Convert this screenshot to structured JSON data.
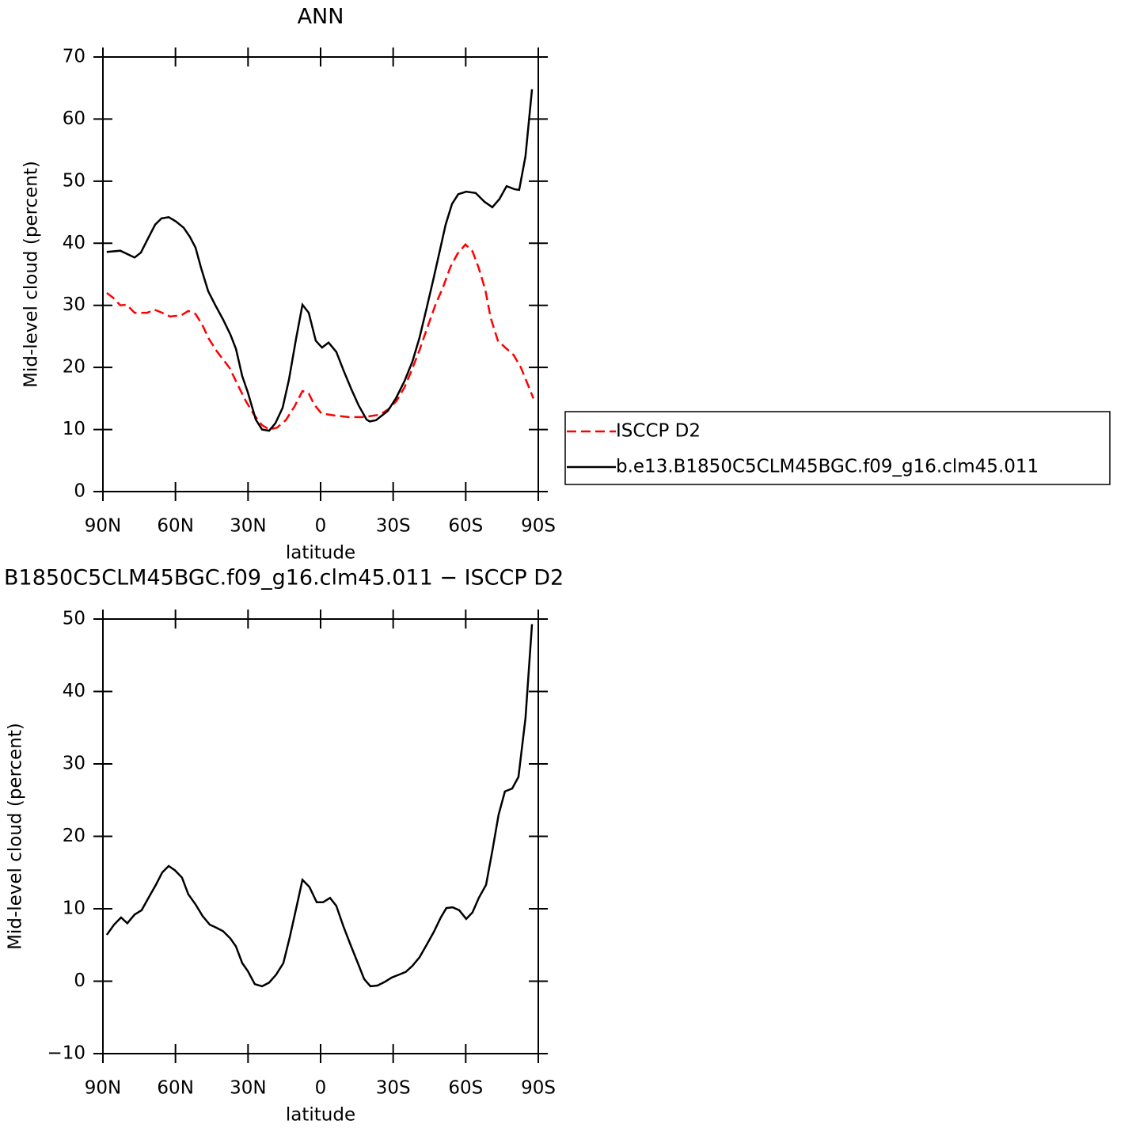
{
  "chart_data": [
    {
      "type": "line",
      "title": "ANN",
      "y_label": "Mid-level cloud (percent)",
      "x_label": "latitude",
      "xlim": [
        90,
        -90
      ],
      "ylim": [
        0,
        70
      ],
      "xticks": [
        {
          "value": 90,
          "label": "90N"
        },
        {
          "value": 60,
          "label": "60N"
        },
        {
          "value": 30,
          "label": "30N"
        },
        0,
        {
          "value": -30,
          "label": "30S"
        },
        {
          "value": -60,
          "label": "60S"
        },
        {
          "value": -90,
          "label": "90S"
        }
      ],
      "yticks": [
        0,
        10,
        20,
        30,
        40,
        50,
        60,
        70
      ],
      "legend": "right",
      "series": [
        {
          "name": "ISCCP D2",
          "color": "#ff0000",
          "dash": true,
          "x": [
            88.4,
            85.7,
            82.8,
            80.2,
            76.9,
            71.7,
            68.7,
            65.5,
            62.2,
            57.6,
            54.7,
            51.7,
            49.1,
            46.2,
            42.9,
            37.6,
            34.4,
            30.8,
            27.2,
            24.2,
            21.3,
            18,
            14.4,
            10.8,
            7.5,
            4.9,
            2.6,
            -0.3,
            -4.9,
            -11.5,
            -18,
            -24.6,
            -28.1,
            -31.4,
            -34.7,
            -37.6,
            -40.9,
            -44.2,
            -47.4,
            -50.7,
            -53.7,
            -56.6,
            -59.9,
            -62.8,
            -65.4,
            -68.1,
            -70.3,
            -73.3,
            -76.9,
            -79.8,
            -82.8,
            -85.4,
            -88
          ],
          "values": [
            32,
            31.2,
            30,
            30.1,
            28.8,
            28.8,
            29.3,
            28.8,
            28.2,
            28.4,
            29.1,
            28.6,
            27,
            24.6,
            22.6,
            19.9,
            17.3,
            14.5,
            12.2,
            10.7,
            10,
            10.3,
            11.5,
            13.7,
            16.2,
            15.8,
            14,
            12.6,
            12.3,
            12,
            12,
            12.4,
            13.3,
            14.6,
            16.8,
            19.5,
            22.8,
            26.5,
            30,
            33,
            36.2,
            38.3,
            39.8,
            38.7,
            36,
            32.5,
            28,
            24.3,
            23,
            22,
            20,
            17.5,
            15
          ]
        },
        {
          "name": "b.e13.B1850C5CLM45BGC.f09_g16.clm45.011",
          "color": "#000000",
          "dash": false,
          "x": [
            88.4,
            82.8,
            76.9,
            74.3,
            71.7,
            68.4,
            65.8,
            62.8,
            59.8,
            56.6,
            54,
            51.7,
            49.4,
            46.5,
            43.5,
            40.3,
            37.3,
            35,
            32.4,
            30.1,
            26.8,
            24.2,
            21.3,
            18.7,
            15.7,
            13.1,
            10.2,
            7.5,
            4.9,
            2,
            -0.6,
            -3.3,
            -6.5,
            -9.5,
            -12.7,
            -15.7,
            -19,
            -20.3,
            -22.9,
            -27.8,
            -31.1,
            -34.7,
            -38,
            -40.9,
            -43.8,
            -46.8,
            -49.4,
            -51.7,
            -54.3,
            -56.9,
            -60.2,
            -64.1,
            -67.7,
            -71,
            -73.9,
            -76.9,
            -80.2,
            -82.1,
            -84.7,
            -87.4
          ],
          "values": [
            38.6,
            38.8,
            37.7,
            38.5,
            40.5,
            43,
            44,
            44.2,
            43.5,
            42.5,
            41,
            39.3,
            36,
            32.3,
            30,
            27.7,
            25.3,
            23,
            18.6,
            16,
            11.6,
            10,
            9.8,
            11,
            13.5,
            18,
            24.5,
            30.1,
            28.8,
            24.3,
            23.2,
            24,
            22.5,
            19.5,
            16.5,
            13.9,
            11.6,
            11.3,
            11.5,
            13,
            15,
            17.8,
            21,
            24.8,
            29.5,
            34.5,
            39,
            43,
            46.3,
            47.9,
            48.3,
            48.1,
            46.7,
            45.8,
            47.1,
            49.2,
            48.7,
            48.6,
            54,
            64.8
          ]
        }
      ]
    },
    {
      "type": "line",
      "title": "B1850C5CLM45BGC.f09_g16.clm45.011 − ISCCP D2",
      "y_label": "Mid-level cloud (percent)",
      "x_label": "latitude",
      "xlim": [
        90,
        -90
      ],
      "ylim": [
        -10,
        50
      ],
      "xticks": [
        {
          "value": 90,
          "label": "90N"
        },
        {
          "value": 60,
          "label": "60N"
        },
        {
          "value": 30,
          "label": "30N"
        },
        0,
        {
          "value": -30,
          "label": "30S"
        },
        {
          "value": -60,
          "label": "60S"
        },
        {
          "value": -90,
          "label": "90S"
        }
      ],
      "yticks": [
        {
          "value": -10,
          "label": "−10"
        },
        0,
        10,
        20,
        30,
        40,
        50
      ],
      "series": [
        {
          "color": "#000000",
          "dash": false,
          "x": [
            88.4,
            85.4,
            82.5,
            79.9,
            76.9,
            74,
            71,
            68.1,
            65.5,
            62.8,
            60.2,
            57.3,
            54.7,
            51.7,
            48.8,
            45.8,
            43.2,
            40.3,
            37.3,
            35,
            32.4,
            30.1,
            27.2,
            24.2,
            21.3,
            18.4,
            15.4,
            12.8,
            9.8,
            7.5,
            4.6,
            1.6,
            -1,
            -3.9,
            -6.5,
            -9.5,
            -12.4,
            -15.4,
            -18,
            -20.6,
            -23.5,
            -26.5,
            -29.4,
            -32.4,
            -35.3,
            -37.9,
            -40.9,
            -43.8,
            -46.8,
            -49.7,
            -52,
            -54.6,
            -57.3,
            -60.2,
            -62.8,
            -65.4,
            -68.4,
            -71,
            -73.6,
            -76.2,
            -79.2,
            -81.8,
            -84.7,
            -87.4
          ],
          "values": [
            6.4,
            7.8,
            8.8,
            8,
            9.2,
            9.8,
            11.6,
            13.3,
            15,
            15.9,
            15.3,
            14.3,
            12,
            10.6,
            9,
            7.8,
            7.4,
            6.9,
            5.9,
            4.8,
            2.5,
            1.4,
            -0.4,
            -0.7,
            -0.2,
            0.9,
            2.5,
            6,
            10.5,
            14,
            13,
            10.9,
            10.9,
            11.5,
            10.4,
            7.5,
            5,
            2.5,
            0.3,
            -0.7,
            -0.6,
            -0.1,
            0.5,
            0.9,
            1.3,
            2.1,
            3.3,
            5,
            6.8,
            8.8,
            10.1,
            10.2,
            9.8,
            8.6,
            9.5,
            11.5,
            13.3,
            18,
            23,
            26.2,
            26.6,
            28.2,
            36.3,
            49.3
          ]
        }
      ]
    }
  ]
}
